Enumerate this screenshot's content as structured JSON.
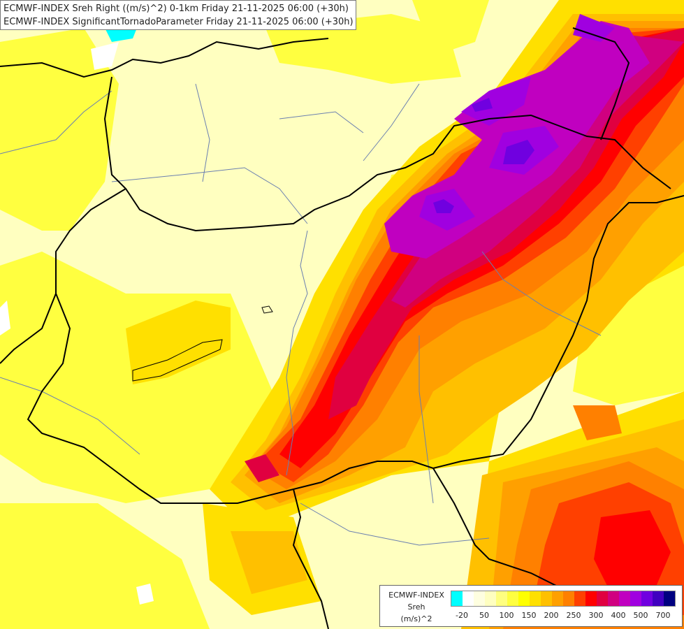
{
  "header": {
    "line1": "ECMWF-INDEX Sreh Right ((m/s)^2) 0-1km Friday 21-11-2025 06:00 (+30h)",
    "line2": "ECMWF-INDEX SignificantTornadoParameter Friday 21-11-2025 06:00 (+30h)"
  },
  "legend": {
    "line1": "ECMWF-INDEX",
    "line2": "Sreh",
    "line3": "(m/s)^2",
    "ticks": [
      "-20",
      "50",
      "100",
      "150",
      "200",
      "250",
      "300",
      "400",
      "500",
      "700"
    ],
    "colors": [
      "#00ffff",
      "#ffffff",
      "#ffffe0",
      "#ffffc0",
      "#ffff80",
      "#ffff40",
      "#ffff00",
      "#ffe000",
      "#ffc000",
      "#ffa000",
      "#ff8000",
      "#ff4000",
      "#ff0000",
      "#e00040",
      "#d00080",
      "#c000c0",
      "#a000e0",
      "#7000e0",
      "#4000c0",
      "#000080"
    ]
  },
  "map": {
    "colors": {
      "background": "#ffffc0",
      "yellow": "#ffff40",
      "gold": "#ffe000",
      "amber": "#ffc000",
      "orange": "#ffa000",
      "dark_orange": "#ff8000",
      "red_orange": "#ff4000",
      "red": "#ff0000",
      "crimson": "#e00040",
      "magenta": "#d00080",
      "purple": "#c000c0",
      "violet": "#a000e0",
      "indigo": "#7000e0",
      "cyan": "#00ffff",
      "border": "#000000",
      "river": "#6a7fb0"
    }
  }
}
